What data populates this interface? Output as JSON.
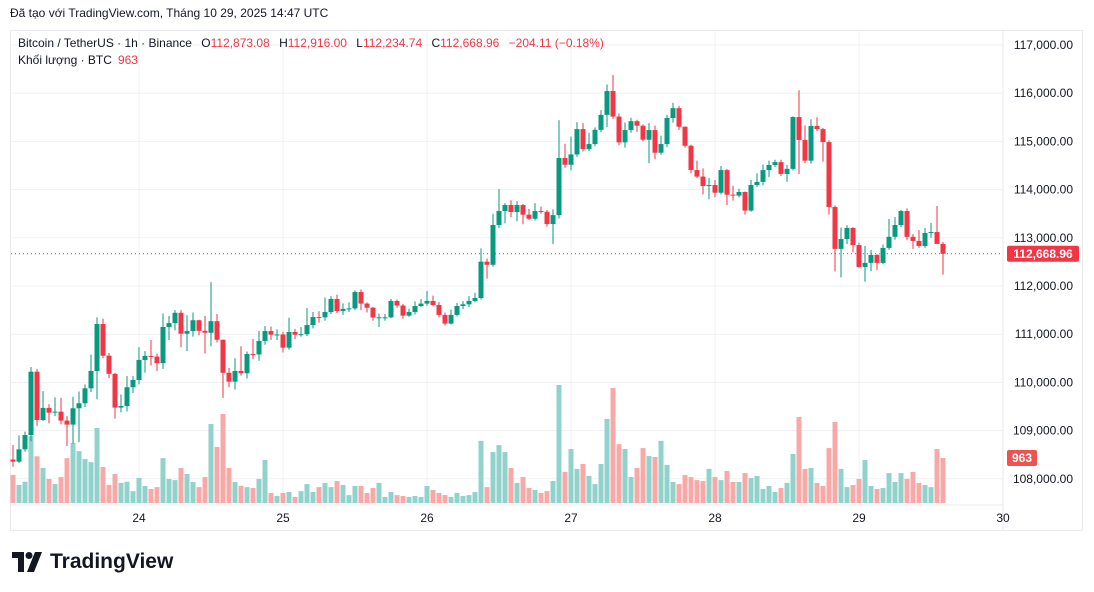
{
  "caption": "Đã tạo với TradingView.com, Tháng 10 29, 2025 14:47 UTC",
  "legend": {
    "symbol": "Bitcoin / TetherUS · 1h · Binance",
    "open_label": "O",
    "open": "112,873.08",
    "high_label": "H",
    "high": "112,916.00",
    "low_label": "L",
    "low": "112,234.74",
    "close_label": "C",
    "close": "112,668.96",
    "change": "−204.11 (−0.18%)",
    "volume_label": "Khối lượng · BTC",
    "volume": "963"
  },
  "logo_text": "TradingView",
  "colors": {
    "up": "#089981",
    "down": "#f23645",
    "up_volume": "#92d2cc",
    "down_volume": "#f7a9a7",
    "grid": "#f0f1f3"
  },
  "chart_data": {
    "type": "candlestick",
    "interval": "1h",
    "first_candle": "Oct 23 03:00 UTC",
    "fields": [
      "open",
      "high",
      "low",
      "close",
      "volume"
    ],
    "candles": [
      [
        108400,
        108700,
        108250,
        108355,
        600
      ],
      [
        108355,
        108900,
        108330,
        108612,
        385
      ],
      [
        108612,
        108980,
        108560,
        108908,
        455
      ],
      [
        108908,
        110320,
        108780,
        110222,
        1430
      ],
      [
        110222,
        110280,
        109100,
        109220,
        1000
      ],
      [
        109220,
        109820,
        109200,
        109470,
        750
      ],
      [
        109470,
        109550,
        109150,
        109373,
        515
      ],
      [
        109373,
        109690,
        109300,
        109393,
        405
      ],
      [
        109393,
        109680,
        109130,
        109207,
        555
      ],
      [
        109207,
        109300,
        108680,
        109124,
        960
      ],
      [
        109124,
        109700,
        108730,
        109463,
        1285
      ],
      [
        109463,
        109810,
        108760,
        109567,
        1110
      ],
      [
        109567,
        109960,
        109490,
        109878,
        940
      ],
      [
        109878,
        110580,
        109800,
        110237,
        875
      ],
      [
        110237,
        111350,
        109650,
        111212,
        1605
      ],
      [
        111212,
        111320,
        110500,
        110554,
        770
      ],
      [
        110554,
        110610,
        110090,
        110177,
        385
      ],
      [
        110177,
        110200,
        109250,
        109478,
        620
      ],
      [
        109478,
        109750,
        109380,
        109510,
        430
      ],
      [
        109510,
        110130,
        109400,
        109900,
        455
      ],
      [
        109900,
        110130,
        109780,
        110050,
        255
      ],
      [
        110050,
        110730,
        109960,
        110465,
        535
      ],
      [
        110465,
        110650,
        110200,
        110550,
        365
      ],
      [
        110550,
        110880,
        110350,
        110535,
        300
      ],
      [
        110535,
        110600,
        110240,
        110400,
        340
      ],
      [
        110400,
        111430,
        110280,
        111150,
        960
      ],
      [
        111150,
        111380,
        110880,
        111230,
        515
      ],
      [
        111230,
        111500,
        111080,
        111445,
        490
      ],
      [
        111445,
        111500,
        110730,
        111010,
        750
      ],
      [
        111010,
        111390,
        110650,
        111065,
        620
      ],
      [
        111065,
        111450,
        110950,
        111290,
        450
      ],
      [
        111290,
        111300,
        110980,
        111070,
        340
      ],
      [
        111070,
        111380,
        110600,
        111030,
        555
      ],
      [
        111030,
        112080,
        110750,
        111270,
        1690
      ],
      [
        111270,
        111420,
        110830,
        110885,
        1200
      ],
      [
        110885,
        110890,
        109680,
        110200,
        1905
      ],
      [
        110200,
        110300,
        109900,
        110015,
        750
      ],
      [
        110015,
        110500,
        109850,
        110237,
        450
      ],
      [
        110237,
        110750,
        110140,
        110190,
        365
      ],
      [
        110190,
        110640,
        110080,
        110590,
        340
      ],
      [
        110590,
        110900,
        110480,
        110580,
        320
      ],
      [
        110580,
        111070,
        110450,
        110860,
        515
      ],
      [
        110860,
        111170,
        110780,
        111065,
        920
      ],
      [
        111065,
        111160,
        110880,
        110990,
        215
      ],
      [
        110990,
        111100,
        110880,
        110995,
        150
      ],
      [
        110995,
        111050,
        110620,
        110720,
        215
      ],
      [
        110720,
        111340,
        110680,
        111045,
        235
      ],
      [
        111045,
        111110,
        110900,
        110990,
        130
      ],
      [
        110990,
        111150,
        110950,
        111000,
        255
      ],
      [
        111000,
        111540,
        110960,
        111190,
        405
      ],
      [
        111190,
        111460,
        111120,
        111355,
        235
      ],
      [
        111355,
        111480,
        111240,
        111350,
        340
      ],
      [
        111350,
        111760,
        111280,
        111460,
        430
      ],
      [
        111460,
        111790,
        111420,
        111730,
        340
      ],
      [
        111730,
        111820,
        111440,
        111480,
        470
      ],
      [
        111480,
        111640,
        111400,
        111525,
        385
      ],
      [
        111525,
        111660,
        111460,
        111535,
        170
      ],
      [
        111535,
        111910,
        111500,
        111875,
        365
      ],
      [
        111875,
        111930,
        111500,
        111635,
        365
      ],
      [
        111635,
        111660,
        111450,
        111550,
        215
      ],
      [
        111550,
        111570,
        111280,
        111345,
        320
      ],
      [
        111345,
        111430,
        111150,
        111350,
        430
      ],
      [
        111350,
        111420,
        111280,
        111350,
        130
      ],
      [
        111350,
        111730,
        111330,
        111690,
        235
      ],
      [
        111690,
        111720,
        111550,
        111595,
        170
      ],
      [
        111595,
        111630,
        111320,
        111385,
        150
      ],
      [
        111385,
        111530,
        111360,
        111460,
        130
      ],
      [
        111460,
        111680,
        111410,
        111585,
        150
      ],
      [
        111585,
        111730,
        111560,
        111635,
        130
      ],
      [
        111635,
        111900,
        111590,
        111690,
        365
      ],
      [
        111690,
        111800,
        111580,
        111605,
        280
      ],
      [
        111605,
        111670,
        111350,
        111400,
        215
      ],
      [
        111400,
        111450,
        111180,
        111220,
        170
      ],
      [
        111220,
        111510,
        111200,
        111400,
        130
      ],
      [
        111400,
        111650,
        111370,
        111585,
        215
      ],
      [
        111585,
        111690,
        111520,
        111620,
        150
      ],
      [
        111620,
        111790,
        111560,
        111690,
        170
      ],
      [
        111690,
        111860,
        111660,
        111750,
        235
      ],
      [
        111750,
        112780,
        111720,
        112505,
        1330
      ],
      [
        112505,
        112570,
        112150,
        112440,
        340
      ],
      [
        112440,
        113500,
        112400,
        113265,
        1090
      ],
      [
        113265,
        114010,
        113200,
        113555,
        1240
      ],
      [
        113555,
        113720,
        113300,
        113680,
        1090
      ],
      [
        113680,
        113780,
        113430,
        113535,
        750
      ],
      [
        113535,
        113760,
        113340,
        113680,
        430
      ],
      [
        113680,
        113700,
        113280,
        113480,
        555
      ],
      [
        113480,
        113600,
        113370,
        113395,
        320
      ],
      [
        113395,
        113720,
        113360,
        113555,
        280
      ],
      [
        113555,
        113650,
        113500,
        113540,
        215
      ],
      [
        113540,
        113580,
        113230,
        113285,
        255
      ],
      [
        113285,
        113590,
        112870,
        113470,
        470
      ],
      [
        113470,
        115440,
        113400,
        114655,
        2525
      ],
      [
        114655,
        114950,
        114450,
        114515,
        665
      ],
      [
        114515,
        115100,
        114400,
        114730,
        1155
      ],
      [
        114730,
        115400,
        114680,
        115255,
        730
      ],
      [
        115255,
        115380,
        114790,
        114840,
        835
      ],
      [
        114840,
        115180,
        114800,
        114945,
        580
      ],
      [
        114945,
        115290,
        114900,
        115240,
        405
      ],
      [
        115240,
        115650,
        115190,
        115550,
        835
      ],
      [
        115550,
        116180,
        115300,
        116045,
        1800
      ],
      [
        116045,
        116380,
        115470,
        115515,
        2460
      ],
      [
        115515,
        115580,
        114920,
        114980,
        1260
      ],
      [
        114980,
        115390,
        114870,
        115235,
        1155
      ],
      [
        115235,
        115490,
        115180,
        115420,
        555
      ],
      [
        115420,
        115450,
        115200,
        115325,
        750
      ],
      [
        115325,
        115350,
        115000,
        115035,
        1175
      ],
      [
        115035,
        115380,
        114550,
        115235,
        1005
      ],
      [
        115235,
        115330,
        114630,
        114765,
        985
      ],
      [
        114765,
        115120,
        114720,
        114945,
        1330
      ],
      [
        114945,
        115550,
        114880,
        115485,
        815
      ],
      [
        115485,
        115800,
        115390,
        115690,
        450
      ],
      [
        115690,
        115740,
        115240,
        115305,
        405
      ],
      [
        115305,
        115310,
        114870,
        114910,
        600
      ],
      [
        114910,
        114930,
        114340,
        114405,
        555
      ],
      [
        114405,
        114600,
        114240,
        114270,
        490
      ],
      [
        114270,
        114440,
        113900,
        114075,
        470
      ],
      [
        114075,
        114240,
        113800,
        114095,
        730
      ],
      [
        114095,
        114200,
        113840,
        113935,
        555
      ],
      [
        113935,
        114490,
        113900,
        114405,
        490
      ],
      [
        114405,
        114430,
        113680,
        113895,
        685
      ],
      [
        113895,
        114080,
        113770,
        113875,
        450
      ],
      [
        113875,
        114020,
        113840,
        113950,
        450
      ],
      [
        113950,
        113960,
        113480,
        113565,
        640
      ],
      [
        113565,
        114200,
        113540,
        114095,
        535
      ],
      [
        114095,
        114340,
        114050,
        114160,
        580
      ],
      [
        114160,
        114520,
        114090,
        114405,
        300
      ],
      [
        114405,
        114600,
        114260,
        114510,
        365
      ],
      [
        114510,
        114620,
        114470,
        114570,
        235
      ],
      [
        114570,
        114620,
        114280,
        114325,
        320
      ],
      [
        114325,
        114510,
        114160,
        114430,
        430
      ],
      [
        114430,
        115520,
        114400,
        115505,
        1050
      ],
      [
        115505,
        116060,
        114320,
        115030,
        1840
      ],
      [
        115030,
        115330,
        114550,
        114600,
        730
      ],
      [
        114600,
        115460,
        114540,
        115320,
        750
      ],
      [
        115320,
        115500,
        115210,
        115255,
        430
      ],
      [
        115255,
        115280,
        114580,
        114985,
        365
      ],
      [
        114985,
        115020,
        113480,
        113640,
        1175
      ],
      [
        113640,
        113670,
        112300,
        112770,
        1735
      ],
      [
        112770,
        113210,
        112180,
        112975,
        730
      ],
      [
        112975,
        113260,
        112870,
        113205,
        340
      ],
      [
        113205,
        113220,
        112700,
        112850,
        385
      ],
      [
        112850,
        112900,
        112380,
        112395,
        515
      ],
      [
        112395,
        112830,
        112090,
        112480,
        920
      ],
      [
        112480,
        112750,
        112310,
        112645,
        365
      ],
      [
        112645,
        112660,
        112330,
        112480,
        300
      ],
      [
        112480,
        112860,
        112450,
        112790,
        320
      ],
      [
        112790,
        113390,
        112750,
        113020,
        640
      ],
      [
        113020,
        113430,
        112960,
        113265,
        450
      ],
      [
        113265,
        113580,
        113220,
        113555,
        640
      ],
      [
        113555,
        113610,
        112950,
        113020,
        515
      ],
      [
        113020,
        113080,
        112770,
        112935,
        665
      ],
      [
        112935,
        113160,
        112790,
        112830,
        430
      ],
      [
        112830,
        113200,
        112790,
        113100,
        385
      ],
      [
        113100,
        113310,
        113000,
        113120,
        340
      ],
      [
        113120,
        113660,
        112890,
        112873.08,
        1155
      ],
      [
        112873.08,
        112916.0,
        112234.74,
        112668.96,
        963
      ]
    ],
    "x_ticks": [
      {
        "label": "24",
        "index": 21
      },
      {
        "label": "25",
        "index": 45
      },
      {
        "label": "26",
        "index": 69
      },
      {
        "label": "27",
        "index": 93
      },
      {
        "label": "28",
        "index": 117
      },
      {
        "label": "29",
        "index": 141
      },
      {
        "label": "30",
        "index": 165
      }
    ],
    "y_ticks": [
      {
        "value": 117000,
        "label": "117,000.00"
      },
      {
        "value": 116000,
        "label": "116,000.00"
      },
      {
        "value": 115000,
        "label": "115,000.00"
      },
      {
        "value": 114000,
        "label": "114,000.00"
      },
      {
        "value": 113000,
        "label": "113,000.00"
      },
      {
        "value": 112000,
        "label": "112,000.00"
      },
      {
        "value": 111000,
        "label": "111,000.00"
      },
      {
        "value": 110000,
        "label": "110,000.00"
      },
      {
        "value": 109000,
        "label": "109,000.00"
      },
      {
        "value": 108000,
        "label": "108,000.00"
      }
    ],
    "ylim": [
      107450,
      117300
    ],
    "last_price": 112668.96,
    "last_price_label": "112,668.96",
    "last_volume_label": "963",
    "grid": true
  }
}
